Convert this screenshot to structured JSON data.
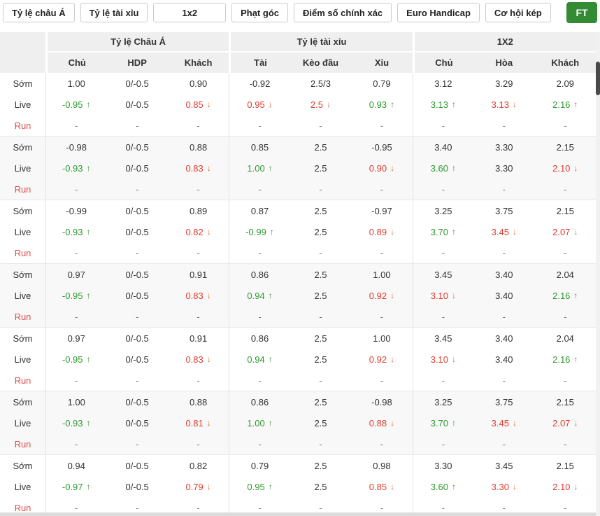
{
  "tabs": [
    "Tỷ lệ châu Á",
    "Tỷ lệ tài xỉu",
    "1x2",
    "Phạt góc",
    "Điểm số chính xác",
    "Euro Handicap",
    "Cơ hội kép"
  ],
  "ft_label": "FT",
  "colors": {
    "accent_green": "#338c33",
    "up_green": "#2e9b2e",
    "down_red": "#e23c2d",
    "down_arrow_orange": "#e0682e",
    "run_label_red": "#d9534f",
    "header_gray": "#efefef"
  },
  "icons": {
    "up_arrow": "↑",
    "down_arrow": "↓"
  },
  "table": {
    "sections": [
      {
        "title": "Tỷ lệ Châu Á",
        "columns": [
          "Chủ",
          "HDP",
          "Khách"
        ]
      },
      {
        "title": "Tỷ lệ tài xỉu",
        "columns": [
          "Tài",
          "Kèo đầu",
          "Xỉu"
        ]
      },
      {
        "title": "1X2",
        "columns": [
          "Chủ",
          "Hòa",
          "Khách"
        ]
      }
    ],
    "row_labels": {
      "early": "Sớm",
      "live": "Live",
      "run": "Run"
    },
    "run_dash": "-",
    "groups": [
      {
        "early": [
          [
            "1.00"
          ],
          [
            "0/-0.5"
          ],
          [
            "0.90"
          ],
          [
            "-0.92"
          ],
          [
            "2.5/3"
          ],
          [
            "0.79"
          ],
          [
            "3.12"
          ],
          [
            "3.29"
          ],
          [
            "2.09"
          ]
        ],
        "live": [
          [
            "-0.95",
            "u"
          ],
          [
            "0/-0.5"
          ],
          [
            "0.85",
            "d"
          ],
          [
            "0.95",
            "d"
          ],
          [
            "2.5",
            "d"
          ],
          [
            "0.93",
            "u"
          ],
          [
            "3.13",
            "u"
          ],
          [
            "3.13",
            "d"
          ],
          [
            "2.16",
            "u"
          ]
        ]
      },
      {
        "early": [
          [
            "-0.98"
          ],
          [
            "0/-0.5"
          ],
          [
            "0.88"
          ],
          [
            "0.85"
          ],
          [
            "2.5"
          ],
          [
            "-0.95"
          ],
          [
            "3.40"
          ],
          [
            "3.30"
          ],
          [
            "2.15"
          ]
        ],
        "live": [
          [
            "-0.93",
            "u"
          ],
          [
            "0/-0.5"
          ],
          [
            "0.83",
            "d"
          ],
          [
            "1.00",
            "u"
          ],
          [
            "2.5"
          ],
          [
            "0.90",
            "d"
          ],
          [
            "3.60",
            "u"
          ],
          [
            "3.30"
          ],
          [
            "2.10",
            "d"
          ]
        ]
      },
      {
        "early": [
          [
            "-0.99"
          ],
          [
            "0/-0.5"
          ],
          [
            "0.89"
          ],
          [
            "0.87"
          ],
          [
            "2.5"
          ],
          [
            "-0.97"
          ],
          [
            "3.25"
          ],
          [
            "3.75"
          ],
          [
            "2.15"
          ]
        ],
        "live": [
          [
            "-0.93",
            "u"
          ],
          [
            "0/-0.5"
          ],
          [
            "0.82",
            "d"
          ],
          [
            "-0.99",
            "u"
          ],
          [
            "2.5"
          ],
          [
            "0.89",
            "d"
          ],
          [
            "3.70",
            "u"
          ],
          [
            "3.45",
            "d"
          ],
          [
            "2.07",
            "d"
          ]
        ]
      },
      {
        "early": [
          [
            "0.97"
          ],
          [
            "0/-0.5"
          ],
          [
            "0.91"
          ],
          [
            "0.86"
          ],
          [
            "2.5"
          ],
          [
            "1.00"
          ],
          [
            "3.45"
          ],
          [
            "3.40"
          ],
          [
            "2.04"
          ]
        ],
        "live": [
          [
            "-0.95",
            "u"
          ],
          [
            "0/-0.5"
          ],
          [
            "0.83",
            "d"
          ],
          [
            "0.94",
            "u"
          ],
          [
            "2.5"
          ],
          [
            "0.92",
            "d"
          ],
          [
            "3.10",
            "d"
          ],
          [
            "3.40"
          ],
          [
            "2.16",
            "u"
          ]
        ]
      },
      {
        "early": [
          [
            "0.97"
          ],
          [
            "0/-0.5"
          ],
          [
            "0.91"
          ],
          [
            "0.86"
          ],
          [
            "2.5"
          ],
          [
            "1.00"
          ],
          [
            "3.45"
          ],
          [
            "3.40"
          ],
          [
            "2.04"
          ]
        ],
        "live": [
          [
            "-0.95",
            "u"
          ],
          [
            "0/-0.5"
          ],
          [
            "0.83",
            "d"
          ],
          [
            "0.94",
            "u"
          ],
          [
            "2.5"
          ],
          [
            "0.92",
            "d"
          ],
          [
            "3.10",
            "d"
          ],
          [
            "3.40"
          ],
          [
            "2.16",
            "u"
          ]
        ]
      },
      {
        "early": [
          [
            "1.00"
          ],
          [
            "0/-0.5"
          ],
          [
            "0.88"
          ],
          [
            "0.86"
          ],
          [
            "2.5"
          ],
          [
            "-0.98"
          ],
          [
            "3.25"
          ],
          [
            "3.75"
          ],
          [
            "2.15"
          ]
        ],
        "live": [
          [
            "-0.93",
            "u"
          ],
          [
            "0/-0.5"
          ],
          [
            "0.81",
            "d"
          ],
          [
            "1.00",
            "u"
          ],
          [
            "2.5"
          ],
          [
            "0.88",
            "d"
          ],
          [
            "3.70",
            "u"
          ],
          [
            "3.45",
            "d"
          ],
          [
            "2.07",
            "d"
          ]
        ]
      },
      {
        "early": [
          [
            "0.94"
          ],
          [
            "0/-0.5"
          ],
          [
            "0.82"
          ],
          [
            "0.79"
          ],
          [
            "2.5"
          ],
          [
            "0.98"
          ],
          [
            "3.30"
          ],
          [
            "3.45"
          ],
          [
            "2.15"
          ]
        ],
        "live": [
          [
            "-0.97",
            "u"
          ],
          [
            "0/-0.5"
          ],
          [
            "0.79",
            "d"
          ],
          [
            "0.95",
            "u"
          ],
          [
            "2.5"
          ],
          [
            "0.85",
            "d"
          ],
          [
            "3.60",
            "u"
          ],
          [
            "3.30",
            "d"
          ],
          [
            "2.10",
            "d"
          ]
        ]
      }
    ]
  }
}
